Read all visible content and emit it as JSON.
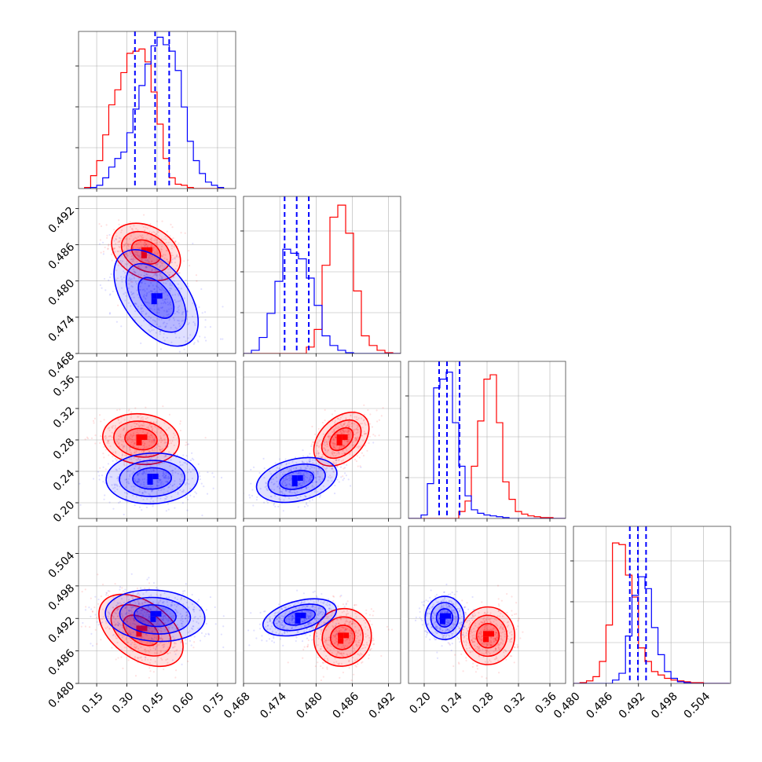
{
  "chart_data": {
    "type": "corner",
    "n_params": 4,
    "series": [
      {
        "name": "red",
        "color": "#ff0000"
      },
      {
        "name": "blue",
        "color": "#0000ff"
      }
    ],
    "axes": [
      {
        "range": [
          0.06,
          0.84
        ],
        "ticks": [
          "0.15",
          "0.30",
          "0.45",
          "0.60",
          "0.75"
        ],
        "tick_values": [
          0.15,
          0.3,
          0.45,
          0.6,
          0.75
        ]
      },
      {
        "range": [
          0.468,
          0.494
        ],
        "ticks": [
          "0.468",
          "0.474",
          "0.480",
          "0.486",
          "0.492"
        ],
        "tick_values": [
          0.468,
          0.474,
          0.48,
          0.486,
          0.492
        ]
      },
      {
        "range": [
          0.18,
          0.38
        ],
        "ticks": [
          "0.20",
          "0.24",
          "0.28",
          "0.32",
          "0.36"
        ],
        "tick_values": [
          0.2,
          0.24,
          0.28,
          0.32,
          0.36
        ]
      },
      {
        "range": [
          0.48,
          0.509
        ],
        "ticks": [
          "0.480",
          "0.486",
          "0.492",
          "0.498",
          "0.504"
        ],
        "tick_values": [
          0.48,
          0.486,
          0.492,
          0.498,
          0.504
        ]
      }
    ],
    "estimates": [
      {
        "quantiles_blue": [
          0.34,
          0.44,
          0.51
        ]
      },
      {
        "quantiles_blue": [
          0.4748,
          0.4768,
          0.4788
        ]
      },
      {
        "quantiles_blue": [
          0.219,
          0.229,
          0.245
        ]
      },
      {
        "quantiles_blue": [
          0.4904,
          0.4919,
          0.4934
        ]
      }
    ],
    "histograms": [
      {
        "bins": [
          0.09,
          0.12,
          0.15,
          0.18,
          0.21,
          0.24,
          0.27,
          0.3,
          0.33,
          0.36,
          0.39,
          0.42,
          0.45,
          0.48,
          0.51,
          0.54,
          0.57,
          0.6,
          0.63,
          0.66,
          0.69,
          0.72,
          0.75,
          0.78
        ],
        "red": [
          1,
          12,
          26,
          50,
          78,
          92,
          108,
          126,
          128,
          130,
          118,
          90,
          60,
          28,
          10,
          4,
          3,
          1,
          0,
          0,
          0,
          0,
          0
        ],
        "blue": [
          0,
          1,
          3,
          10,
          20,
          28,
          34,
          52,
          74,
          96,
          116,
          133,
          141,
          134,
          128,
          110,
          76,
          44,
          26,
          14,
          6,
          3,
          1
        ],
        "max": 142
      },
      {
        "bins": [
          0.468,
          0.4693,
          0.4706,
          0.4719,
          0.4732,
          0.4745,
          0.4758,
          0.4771,
          0.4784,
          0.4797,
          0.481,
          0.4823,
          0.4836,
          0.4849,
          0.4862,
          0.4875,
          0.4888,
          0.4901,
          0.4914,
          0.4927,
          0.494
        ],
        "blue": [
          0,
          4,
          20,
          50,
          90,
          130,
          125,
          118,
          94,
          60,
          22,
          10,
          4,
          1,
          0,
          0,
          0,
          0,
          0,
          0
        ],
        "red": [
          0,
          0,
          0,
          0,
          0,
          0,
          0,
          0,
          8,
          30,
          110,
          170,
          185,
          150,
          78,
          22,
          10,
          4,
          1,
          0
        ],
        "max": 190
      },
      {
        "bins": [
          0.18,
          0.188,
          0.196,
          0.204,
          0.212,
          0.22,
          0.228,
          0.236,
          0.244,
          0.252,
          0.26,
          0.268,
          0.276,
          0.284,
          0.292,
          0.3,
          0.308,
          0.316,
          0.324,
          0.332,
          0.34,
          0.348,
          0.356,
          0.364,
          0.372,
          0.38
        ],
        "blue": [
          0,
          0,
          4,
          40,
          150,
          160,
          168,
          110,
          60,
          26,
          10,
          6,
          4,
          3,
          2,
          1,
          0,
          0,
          0,
          0,
          0,
          0,
          0,
          0,
          0
        ],
        "red": [
          0,
          0,
          0,
          0,
          0,
          0,
          0,
          0,
          8,
          20,
          60,
          112,
          160,
          165,
          110,
          42,
          22,
          8,
          5,
          3,
          2,
          1,
          1,
          0,
          0
        ],
        "max": 175
      },
      {
        "bins": [
          0.48,
          0.4812,
          0.4824,
          0.4836,
          0.4848,
          0.486,
          0.4872,
          0.4884,
          0.4896,
          0.4908,
          0.492,
          0.4932,
          0.4944,
          0.4956,
          0.4968,
          0.498,
          0.4992,
          0.5004,
          0.5016,
          0.5028,
          0.504,
          0.5052,
          0.5064,
          0.5076,
          0.5088
        ],
        "red": [
          0,
          1,
          3,
          8,
          26,
          69,
          166,
          164,
          128,
          102,
          42,
          26,
          14,
          10,
          6,
          4,
          3,
          2,
          1,
          1,
          0,
          0,
          0,
          0
        ],
        "blue": [
          0,
          0,
          0,
          0,
          0,
          0,
          4,
          12,
          56,
          104,
          126,
          112,
          66,
          34,
          14,
          6,
          2,
          1,
          0,
          0,
          0,
          0,
          0,
          0
        ],
        "max": 180
      }
    ],
    "blobs": {
      "1-0": {
        "red": [
          0.395,
          0.4848,
          0.09,
          0.0025,
          -0.3
        ],
        "blue": [
          0.445,
          0.4772,
          0.11,
          0.0042,
          -0.5
        ]
      },
      "2-0": {
        "red": [
          0.37,
          0.281,
          0.1,
          0.017,
          -0.1
        ],
        "blue": [
          0.425,
          0.231,
          0.12,
          0.017,
          0.05
        ]
      },
      "2-1": {
        "red": [
          0.4842,
          0.281,
          0.0024,
          0.018,
          0.4
        ],
        "blue": [
          0.4768,
          0.229,
          0.0035,
          0.015,
          0.3
        ]
      },
      "3-0": {
        "red": [
          0.37,
          0.4898,
          0.11,
          0.0035,
          -0.45
        ],
        "blue": [
          0.44,
          0.4925,
          0.13,
          0.0025,
          -0.1
        ]
      },
      "3-1": {
        "red": [
          0.4844,
          0.4885,
          0.0025,
          0.0028,
          0.05
        ],
        "blue": [
          0.4773,
          0.4922,
          0.0032,
          0.0018,
          0.4
        ]
      },
      "3-2": {
        "red": [
          0.281,
          0.4888,
          0.018,
          0.0028,
          0.0
        ],
        "blue": [
          0.226,
          0.4921,
          0.013,
          0.0021,
          0.0
        ]
      }
    }
  }
}
